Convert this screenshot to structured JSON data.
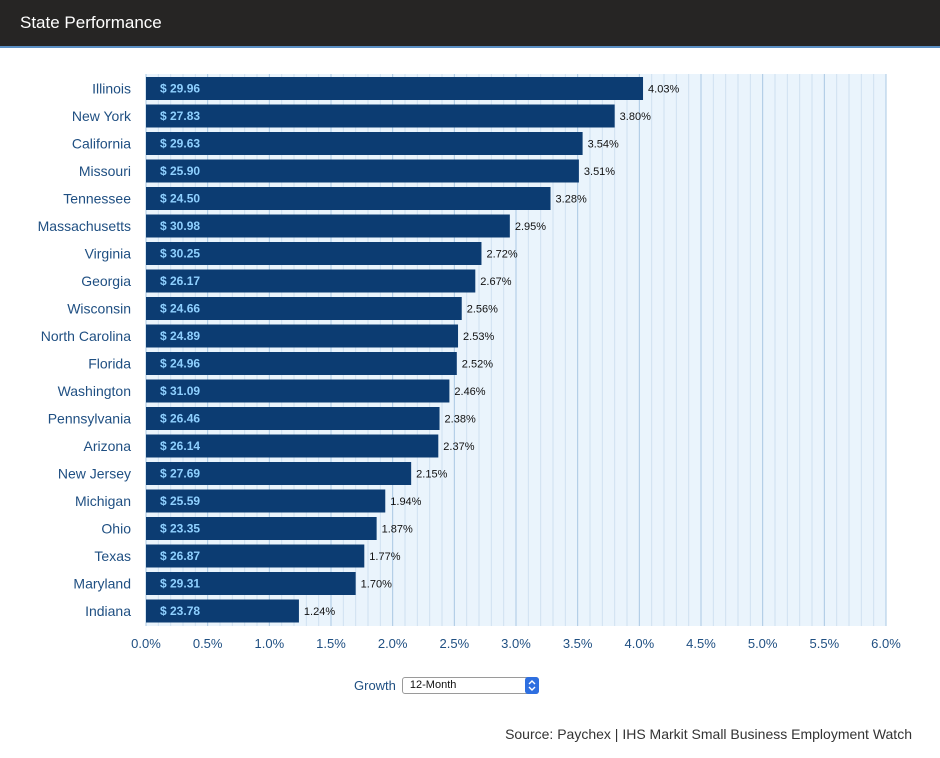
{
  "header": {
    "title": "State Performance"
  },
  "controls": {
    "growth_label": "Growth",
    "growth_selected": "12-Month",
    "select_arrow_icon": "updown-chevron-icon"
  },
  "source": "Source: Paychex | IHS Markit Small Business Employment Watch",
  "colors": {
    "header_bg": "#262524",
    "bar": "#0c3c72",
    "bar_label": "#8fd0ff",
    "plot_bg": "#eaf4fc",
    "axis_text": "#1f4f82",
    "gridline_major": "#a9c8e3",
    "gridline_minor": "#cfe1f1"
  },
  "chart_data": {
    "type": "bar",
    "orientation": "horizontal",
    "categories": [
      "Illinois",
      "New York",
      "California",
      "Missouri",
      "Tennessee",
      "Massachusetts",
      "Virginia",
      "Georgia",
      "Wisconsin",
      "North Carolina",
      "Florida",
      "Washington",
      "Pennsylvania",
      "Arizona",
      "New Jersey",
      "Michigan",
      "Ohio",
      "Texas",
      "Maryland",
      "Indiana"
    ],
    "values": [
      4.03,
      3.8,
      3.54,
      3.51,
      3.28,
      2.95,
      2.72,
      2.67,
      2.56,
      2.53,
      2.52,
      2.46,
      2.38,
      2.37,
      2.15,
      1.94,
      1.87,
      1.77,
      1.7,
      1.24
    ],
    "value_labels": [
      "4.03%",
      "3.80%",
      "3.54%",
      "3.51%",
      "3.28%",
      "2.95%",
      "2.72%",
      "2.67%",
      "2.56%",
      "2.53%",
      "2.52%",
      "2.46%",
      "2.38%",
      "2.37%",
      "2.15%",
      "1.94%",
      "1.87%",
      "1.77%",
      "1.70%",
      "1.24%"
    ],
    "bar_labels": [
      "$ 29.96",
      "$ 27.83",
      "$ 29.63",
      "$ 25.90",
      "$ 24.50",
      "$ 30.98",
      "$ 30.25",
      "$ 26.17",
      "$ 24.66",
      "$ 24.89",
      "$ 24.96",
      "$ 31.09",
      "$ 26.46",
      "$ 26.14",
      "$ 27.69",
      "$ 25.59",
      "$ 23.35",
      "$ 26.87",
      "$ 29.31",
      "$ 23.78"
    ],
    "xlim": [
      0,
      6
    ],
    "xticks": [
      0,
      0.5,
      1,
      1.5,
      2,
      2.5,
      3,
      3.5,
      4,
      4.5,
      5,
      5.5,
      6
    ],
    "xtick_labels": [
      "0.0%",
      "0.5%",
      "1.0%",
      "1.5%",
      "2.0%",
      "2.5%",
      "3.0%",
      "3.5%",
      "4.0%",
      "4.5%",
      "5.0%",
      "5.5%",
      "6.0%"
    ],
    "grid": true,
    "xlabel": "",
    "ylabel": ""
  }
}
